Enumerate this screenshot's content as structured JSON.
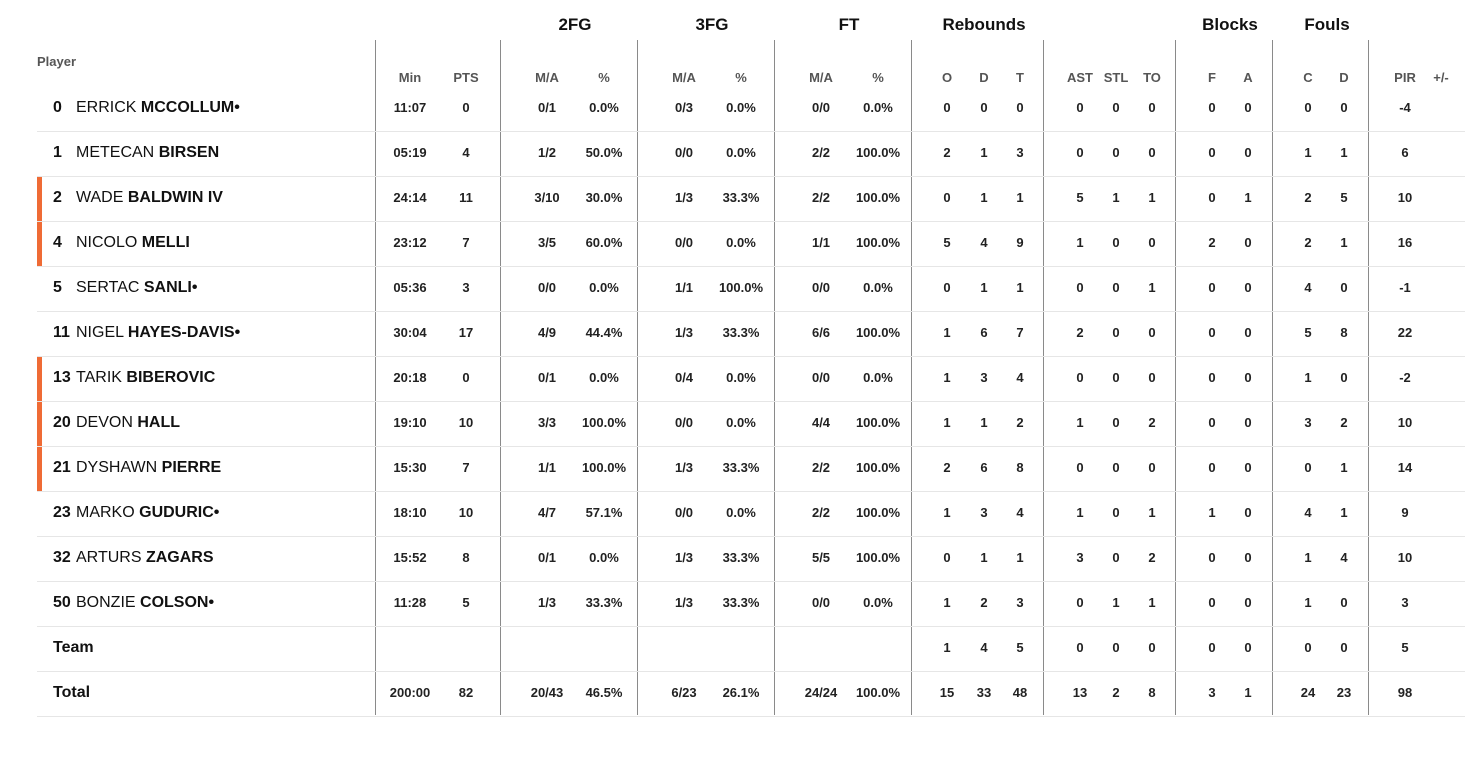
{
  "groups": {
    "2fg": "2FG",
    "3fg": "3FG",
    "ft": "FT",
    "rebounds": "Rebounds",
    "blocks": "Blocks",
    "fouls": "Fouls"
  },
  "headers": {
    "player": "Player",
    "min": "Min",
    "pts": "PTS",
    "fg2_ma": "M/A",
    "fg2_pct": "%",
    "fg3_ma": "M/A",
    "fg3_pct": "%",
    "ft_ma": "M/A",
    "ft_pct": "%",
    "reb_o": "O",
    "reb_d": "D",
    "reb_t": "T",
    "ast": "AST",
    "stl": "STL",
    "to": "TO",
    "blk_f": "F",
    "blk_a": "A",
    "fouls_c": "C",
    "fouls_d": "D",
    "pir": "PIR",
    "plusminus": "+/-"
  },
  "accent_color": "#ef6b35",
  "rows": [
    {
      "num": "0",
      "first": "ERRICK",
      "last": "MCCOLLUM",
      "marker": "•",
      "starter": false,
      "min": "11:07",
      "pts": "0",
      "fg2_ma": "0/1",
      "fg2_pct": "0.0%",
      "fg3_ma": "0/3",
      "fg3_pct": "0.0%",
      "ft_ma": "0/0",
      "ft_pct": "0.0%",
      "reb_o": "0",
      "reb_d": "0",
      "reb_t": "0",
      "ast": "0",
      "stl": "0",
      "to": "0",
      "blk_f": "0",
      "blk_a": "0",
      "fouls_c": "0",
      "fouls_d": "0",
      "pir": "-4"
    },
    {
      "num": "1",
      "first": "METECAN",
      "last": "BIRSEN",
      "marker": "",
      "starter": false,
      "min": "05:19",
      "pts": "4",
      "fg2_ma": "1/2",
      "fg2_pct": "50.0%",
      "fg3_ma": "0/0",
      "fg3_pct": "0.0%",
      "ft_ma": "2/2",
      "ft_pct": "100.0%",
      "reb_o": "2",
      "reb_d": "1",
      "reb_t": "3",
      "ast": "0",
      "stl": "0",
      "to": "0",
      "blk_f": "0",
      "blk_a": "0",
      "fouls_c": "1",
      "fouls_d": "1",
      "pir": "6"
    },
    {
      "num": "2",
      "first": "WADE",
      "last": "BALDWIN IV",
      "marker": "",
      "starter": true,
      "min": "24:14",
      "pts": "11",
      "fg2_ma": "3/10",
      "fg2_pct": "30.0%",
      "fg3_ma": "1/3",
      "fg3_pct": "33.3%",
      "ft_ma": "2/2",
      "ft_pct": "100.0%",
      "reb_o": "0",
      "reb_d": "1",
      "reb_t": "1",
      "ast": "5",
      "stl": "1",
      "to": "1",
      "blk_f": "0",
      "blk_a": "1",
      "fouls_c": "2",
      "fouls_d": "5",
      "pir": "10"
    },
    {
      "num": "4",
      "first": "NICOLO",
      "last": "MELLI",
      "marker": "",
      "starter": true,
      "min": "23:12",
      "pts": "7",
      "fg2_ma": "3/5",
      "fg2_pct": "60.0%",
      "fg3_ma": "0/0",
      "fg3_pct": "0.0%",
      "ft_ma": "1/1",
      "ft_pct": "100.0%",
      "reb_o": "5",
      "reb_d": "4",
      "reb_t": "9",
      "ast": "1",
      "stl": "0",
      "to": "0",
      "blk_f": "2",
      "blk_a": "0",
      "fouls_c": "2",
      "fouls_d": "1",
      "pir": "16"
    },
    {
      "num": "5",
      "first": "SERTAC",
      "last": "SANLI",
      "marker": "•",
      "starter": false,
      "min": "05:36",
      "pts": "3",
      "fg2_ma": "0/0",
      "fg2_pct": "0.0%",
      "fg3_ma": "1/1",
      "fg3_pct": "100.0%",
      "ft_ma": "0/0",
      "ft_pct": "0.0%",
      "reb_o": "0",
      "reb_d": "1",
      "reb_t": "1",
      "ast": "0",
      "stl": "0",
      "to": "1",
      "blk_f": "0",
      "blk_a": "0",
      "fouls_c": "4",
      "fouls_d": "0",
      "pir": "-1"
    },
    {
      "num": "11",
      "first": "NIGEL",
      "last": "HAYES-DAVIS",
      "marker": "•",
      "starter": false,
      "min": "30:04",
      "pts": "17",
      "fg2_ma": "4/9",
      "fg2_pct": "44.4%",
      "fg3_ma": "1/3",
      "fg3_pct": "33.3%",
      "ft_ma": "6/6",
      "ft_pct": "100.0%",
      "reb_o": "1",
      "reb_d": "6",
      "reb_t": "7",
      "ast": "2",
      "stl": "0",
      "to": "0",
      "blk_f": "0",
      "blk_a": "0",
      "fouls_c": "5",
      "fouls_d": "8",
      "pir": "22"
    },
    {
      "num": "13",
      "first": "TARIK",
      "last": "BIBEROVIC",
      "marker": "",
      "starter": true,
      "min": "20:18",
      "pts": "0",
      "fg2_ma": "0/1",
      "fg2_pct": "0.0%",
      "fg3_ma": "0/4",
      "fg3_pct": "0.0%",
      "ft_ma": "0/0",
      "ft_pct": "0.0%",
      "reb_o": "1",
      "reb_d": "3",
      "reb_t": "4",
      "ast": "0",
      "stl": "0",
      "to": "0",
      "blk_f": "0",
      "blk_a": "0",
      "fouls_c": "1",
      "fouls_d": "0",
      "pir": "-2"
    },
    {
      "num": "20",
      "first": "DEVON",
      "last": "HALL",
      "marker": "",
      "starter": true,
      "min": "19:10",
      "pts": "10",
      "fg2_ma": "3/3",
      "fg2_pct": "100.0%",
      "fg3_ma": "0/0",
      "fg3_pct": "0.0%",
      "ft_ma": "4/4",
      "ft_pct": "100.0%",
      "reb_o": "1",
      "reb_d": "1",
      "reb_t": "2",
      "ast": "1",
      "stl": "0",
      "to": "2",
      "blk_f": "0",
      "blk_a": "0",
      "fouls_c": "3",
      "fouls_d": "2",
      "pir": "10"
    },
    {
      "num": "21",
      "first": "DYSHAWN",
      "last": "PIERRE",
      "marker": "",
      "starter": true,
      "min": "15:30",
      "pts": "7",
      "fg2_ma": "1/1",
      "fg2_pct": "100.0%",
      "fg3_ma": "1/3",
      "fg3_pct": "33.3%",
      "ft_ma": "2/2",
      "ft_pct": "100.0%",
      "reb_o": "2",
      "reb_d": "6",
      "reb_t": "8",
      "ast": "0",
      "stl": "0",
      "to": "0",
      "blk_f": "0",
      "blk_a": "0",
      "fouls_c": "0",
      "fouls_d": "1",
      "pir": "14"
    },
    {
      "num": "23",
      "first": "MARKO",
      "last": "GUDURIC",
      "marker": "•",
      "starter": false,
      "min": "18:10",
      "pts": "10",
      "fg2_ma": "4/7",
      "fg2_pct": "57.1%",
      "fg3_ma": "0/0",
      "fg3_pct": "0.0%",
      "ft_ma": "2/2",
      "ft_pct": "100.0%",
      "reb_o": "1",
      "reb_d": "3",
      "reb_t": "4",
      "ast": "1",
      "stl": "0",
      "to": "1",
      "blk_f": "1",
      "blk_a": "0",
      "fouls_c": "4",
      "fouls_d": "1",
      "pir": "9"
    },
    {
      "num": "32",
      "first": "ARTURS",
      "last": "ZAGARS",
      "marker": "",
      "starter": false,
      "min": "15:52",
      "pts": "8",
      "fg2_ma": "0/1",
      "fg2_pct": "0.0%",
      "fg3_ma": "1/3",
      "fg3_pct": "33.3%",
      "ft_ma": "5/5",
      "ft_pct": "100.0%",
      "reb_o": "0",
      "reb_d": "1",
      "reb_t": "1",
      "ast": "3",
      "stl": "0",
      "to": "2",
      "blk_f": "0",
      "blk_a": "0",
      "fouls_c": "1",
      "fouls_d": "4",
      "pir": "10"
    },
    {
      "num": "50",
      "first": "BONZIE",
      "last": "COLSON",
      "marker": "•",
      "starter": false,
      "min": "11:28",
      "pts": "5",
      "fg2_ma": "1/3",
      "fg2_pct": "33.3%",
      "fg3_ma": "1/3",
      "fg3_pct": "33.3%",
      "ft_ma": "0/0",
      "ft_pct": "0.0%",
      "reb_o": "1",
      "reb_d": "2",
      "reb_t": "3",
      "ast": "0",
      "stl": "1",
      "to": "1",
      "blk_f": "0",
      "blk_a": "0",
      "fouls_c": "1",
      "fouls_d": "0",
      "pir": "3"
    }
  ],
  "team": {
    "label": "Team",
    "min": "",
    "pts": "",
    "fg2_ma": "",
    "fg2_pct": "",
    "fg3_ma": "",
    "fg3_pct": "",
    "ft_ma": "",
    "ft_pct": "",
    "reb_o": "1",
    "reb_d": "4",
    "reb_t": "5",
    "ast": "0",
    "stl": "0",
    "to": "0",
    "blk_f": "0",
    "blk_a": "0",
    "fouls_c": "0",
    "fouls_d": "0",
    "pir": "5"
  },
  "total": {
    "label": "Total",
    "min": "200:00",
    "pts": "82",
    "fg2_ma": "20/43",
    "fg2_pct": "46.5%",
    "fg3_ma": "6/23",
    "fg3_pct": "26.1%",
    "ft_ma": "24/24",
    "ft_pct": "100.0%",
    "reb_o": "15",
    "reb_d": "33",
    "reb_t": "48",
    "ast": "13",
    "stl": "2",
    "to": "8",
    "blk_f": "3",
    "blk_a": "1",
    "fouls_c": "24",
    "fouls_d": "23",
    "pir": "98"
  }
}
